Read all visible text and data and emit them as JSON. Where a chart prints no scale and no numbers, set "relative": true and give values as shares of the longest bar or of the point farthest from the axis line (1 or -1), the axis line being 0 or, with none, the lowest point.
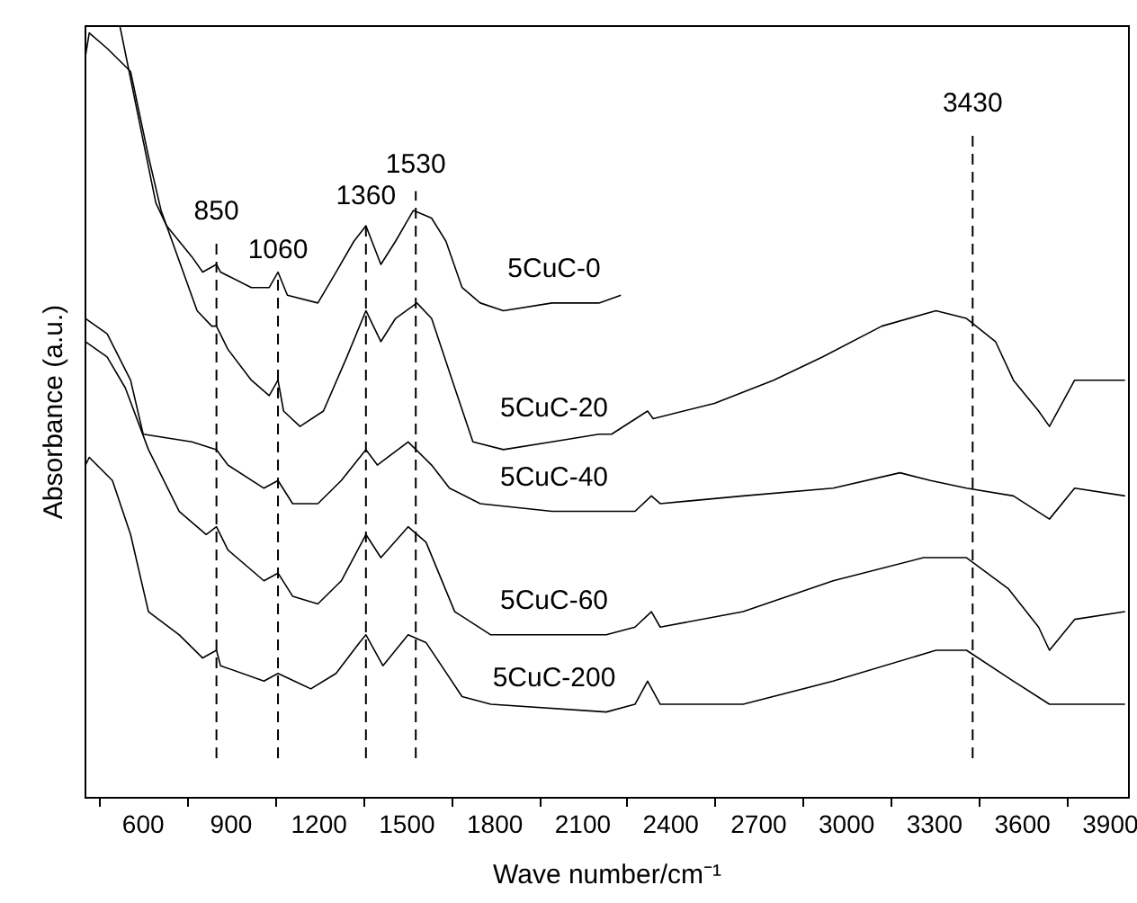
{
  "chart_data": {
    "type": "line",
    "relative": true,
    "xlabel": "Wave number/cm⁻¹",
    "ylabel": "Absorbance (a.u.)",
    "xlim": [
      400,
      3960
    ],
    "xticks": [
      {
        "value": 450,
        "label": null
      },
      600,
      {
        "value": 750,
        "label": null
      },
      900,
      {
        "value": 1050,
        "label": null
      },
      1200,
      {
        "value": 1350,
        "label": null
      },
      1500,
      {
        "value": 1650,
        "label": null
      },
      1800,
      {
        "value": 1950,
        "label": null
      },
      2100,
      {
        "value": 2250,
        "label": null
      },
      2400,
      {
        "value": 2550,
        "label": null
      },
      2700,
      {
        "value": 2850,
        "label": null
      },
      3000,
      {
        "value": 3150,
        "label": null
      },
      3300,
      {
        "value": 3450,
        "label": null
      },
      3600,
      {
        "value": 3750,
        "label": null
      },
      3900
    ],
    "grid": false,
    "line_style": "solid",
    "marker": "none",
    "ref_lines": [
      {
        "axis": "x",
        "value": 850,
        "label": "850",
        "color": "#000000",
        "line_style": "dashed"
      },
      {
        "axis": "x",
        "value": 1060,
        "label": "1060",
        "color": "#000000",
        "line_style": "dashed"
      },
      {
        "axis": "x",
        "value": 1360,
        "label": "1360",
        "color": "#000000",
        "line_style": "dashed"
      },
      {
        "axis": "x",
        "value": 1530,
        "label": "1530",
        "color": "#000000",
        "line_style": "dashed"
      },
      {
        "axis": "x",
        "value": 3430,
        "label": "3430",
        "color": "#000000",
        "line_style": "dashed"
      }
    ],
    "series": [
      {
        "name": "5CuC-0",
        "color": "#000000",
        "x": [
          520,
          643,
          680,
          766,
          803,
          850,
          864,
          969,
          1030,
          1060,
          1092,
          1196,
          1258,
          1319,
          1360,
          1411,
          1461,
          1522,
          1584,
          1633,
          1688,
          1750,
          1829,
          1995,
          2155,
          2230
        ],
        "values": [
          1.0,
          0.77,
          0.74,
          0.7,
          0.68,
          0.69,
          0.68,
          0.66,
          0.66,
          0.68,
          0.65,
          0.64,
          0.68,
          0.72,
          0.74,
          0.69,
          0.72,
          0.76,
          0.75,
          0.72,
          0.66,
          0.64,
          0.63,
          0.64,
          0.64,
          0.65
        ]
      },
      {
        "name": "5CuC-20",
        "color": "#000000",
        "x": [
          403,
          416,
          477,
          557,
          618,
          661,
          784,
          834,
          850,
          889,
          969,
          1030,
          1060,
          1079,
          1135,
          1215,
          1295,
          1360,
          1411,
          1461,
          1534,
          1584,
          1663,
          1725,
          1829,
          1995,
          2155,
          2198,
          2321,
          2340,
          2549,
          2751,
          2917,
          3120,
          3305,
          3409,
          3508,
          3569,
          3655,
          3692,
          3778,
          3876,
          3950
        ],
        "values": [
          0.96,
          0.99,
          0.97,
          0.94,
          0.83,
          0.76,
          0.63,
          0.61,
          0.61,
          0.58,
          0.54,
          0.52,
          0.54,
          0.5,
          0.48,
          0.5,
          0.57,
          0.63,
          0.59,
          0.62,
          0.64,
          0.62,
          0.53,
          0.46,
          0.45,
          0.46,
          0.47,
          0.47,
          0.5,
          0.49,
          0.51,
          0.54,
          0.57,
          0.61,
          0.63,
          0.62,
          0.59,
          0.54,
          0.5,
          0.48,
          0.54,
          0.54,
          0.54
        ]
      },
      {
        "name": "5CuC-40",
        "color": "#000000",
        "x": [
          403,
          477,
          557,
          600,
          766,
          850,
          889,
          1012,
          1060,
          1110,
          1196,
          1276,
          1360,
          1399,
          1504,
          1584,
          1645,
          1750,
          1995,
          2180,
          2278,
          2334,
          2364,
          2647,
          2954,
          3182,
          3286,
          3409,
          3569,
          3692,
          3778,
          3950
        ],
        "values": [
          0.62,
          0.6,
          0.54,
          0.47,
          0.46,
          0.45,
          0.43,
          0.4,
          0.41,
          0.38,
          0.38,
          0.41,
          0.45,
          0.43,
          0.46,
          0.43,
          0.4,
          0.38,
          0.37,
          0.37,
          0.37,
          0.39,
          0.38,
          0.39,
          0.4,
          0.42,
          0.41,
          0.4,
          0.39,
          0.36,
          0.4,
          0.39
        ]
      },
      {
        "name": "5CuC-60",
        "color": "#000000",
        "x": [
          403,
          477,
          539,
          618,
          723,
          815,
          850,
          889,
          1012,
          1060,
          1110,
          1196,
          1276,
          1360,
          1411,
          1504,
          1565,
          1663,
          1786,
          2180,
          2278,
          2334,
          2364,
          2647,
          2954,
          3262,
          3409,
          3551,
          3655,
          3692,
          3778,
          3950
        ],
        "values": [
          0.59,
          0.57,
          0.53,
          0.45,
          0.37,
          0.34,
          0.35,
          0.32,
          0.28,
          0.29,
          0.26,
          0.25,
          0.28,
          0.34,
          0.31,
          0.35,
          0.33,
          0.24,
          0.21,
          0.21,
          0.22,
          0.24,
          0.22,
          0.24,
          0.28,
          0.31,
          0.31,
          0.27,
          0.22,
          0.19,
          0.23,
          0.24
        ]
      },
      {
        "name": "5CuC-200",
        "color": "#000000",
        "x": [
          403,
          416,
          495,
          557,
          618,
          723,
          803,
          850,
          864,
          1012,
          1060,
          1172,
          1258,
          1338,
          1360,
          1418,
          1504,
          1565,
          1688,
          1786,
          2180,
          2278,
          2321,
          2364,
          2647,
          2954,
          3305,
          3409,
          3569,
          3692,
          3778,
          3950
        ],
        "values": [
          0.43,
          0.44,
          0.41,
          0.34,
          0.24,
          0.21,
          0.18,
          0.19,
          0.17,
          0.15,
          0.16,
          0.14,
          0.16,
          0.2,
          0.21,
          0.17,
          0.21,
          0.2,
          0.13,
          0.12,
          0.11,
          0.12,
          0.15,
          0.12,
          0.12,
          0.15,
          0.19,
          0.19,
          0.15,
          0.12,
          0.12,
          0.12
        ]
      }
    ]
  }
}
